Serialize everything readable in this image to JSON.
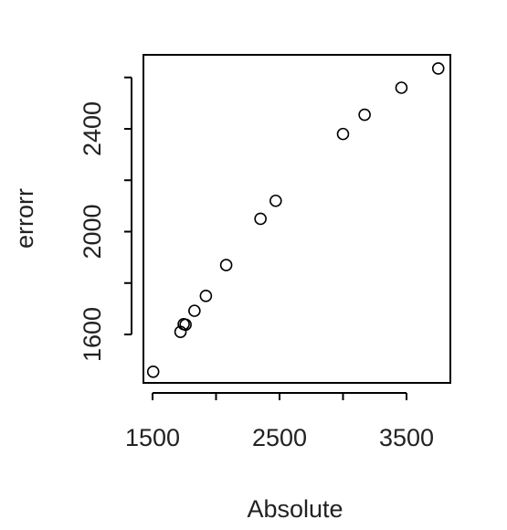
{
  "chart_data": {
    "type": "scatter",
    "xlabel": "Absolute",
    "ylabel": "errorr",
    "title": "",
    "xlim": [
      1500,
      3800
    ],
    "ylim": [
      1460,
      2640
    ],
    "xticks": [
      1500,
      2500,
      3500
    ],
    "yticks": [
      1600,
      2000,
      2400
    ],
    "grid": false,
    "points": [
      {
        "x": 1505,
        "y": 1455
      },
      {
        "x": 1720,
        "y": 1610
      },
      {
        "x": 1745,
        "y": 1640
      },
      {
        "x": 1760,
        "y": 1638
      },
      {
        "x": 1830,
        "y": 1692
      },
      {
        "x": 1920,
        "y": 1750
      },
      {
        "x": 2080,
        "y": 1870
      },
      {
        "x": 2350,
        "y": 2050
      },
      {
        "x": 2470,
        "y": 2120
      },
      {
        "x": 3000,
        "y": 2380
      },
      {
        "x": 3170,
        "y": 2455
      },
      {
        "x": 3460,
        "y": 2560
      },
      {
        "x": 3750,
        "y": 2635
      }
    ]
  }
}
